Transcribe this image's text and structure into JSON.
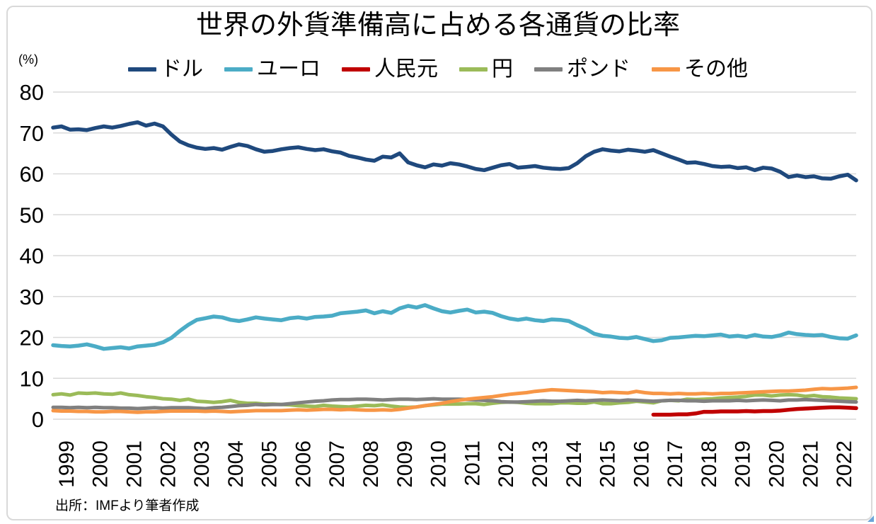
{
  "header": {
    "title": "世界の外貨準備高に占める各通貨の比率",
    "unit_label": "(%)"
  },
  "footer": {
    "source": "出所：IMFより筆者作成"
  },
  "chart_data": {
    "type": "line",
    "title": "世界の外貨準備高に占める各通貨の比率",
    "ylabel": "(%)",
    "xlabel": "",
    "ylim": [
      0,
      80
    ],
    "ytick_step": 10,
    "y_ticks": [
      0,
      10,
      20,
      30,
      40,
      50,
      60,
      70,
      80
    ],
    "grid": true,
    "legend_position": "top",
    "x_labels": [
      "1999",
      "2000",
      "2001",
      "2002",
      "2003",
      "2004",
      "2005",
      "2006",
      "2007",
      "2008",
      "2009",
      "2010",
      "2011",
      "2012",
      "2013",
      "2014",
      "2015",
      "2016",
      "2017",
      "2018",
      "2019",
      "2020",
      "2021",
      "2022"
    ],
    "points_per_year": 4,
    "x_unit": "quarterly points from 1999Q1 to 2022Q4",
    "series": [
      {
        "key": "usd",
        "name": "ドル",
        "color": "#1F497D",
        "line_width": 5.5,
        "values": [
          71.3,
          71.6,
          70.8,
          70.9,
          70.7,
          71.2,
          71.6,
          71.3,
          71.7,
          72.2,
          72.6,
          71.8,
          72.3,
          71.6,
          69.6,
          67.9,
          67.0,
          66.4,
          66.1,
          66.3,
          65.9,
          66.6,
          67.2,
          66.8,
          66.0,
          65.4,
          65.6,
          66.0,
          66.3,
          66.5,
          66.1,
          65.8,
          66.0,
          65.5,
          65.2,
          64.4,
          64.0,
          63.5,
          63.2,
          64.2,
          64.0,
          65.0,
          62.8,
          62.1,
          61.6,
          62.3,
          62.0,
          62.6,
          62.3,
          61.8,
          61.2,
          60.9,
          61.5,
          62.1,
          62.4,
          61.5,
          61.7,
          61.9,
          61.5,
          61.3,
          61.2,
          61.4,
          62.6,
          64.3,
          65.4,
          66.0,
          65.7,
          65.5,
          65.9,
          65.7,
          65.4,
          65.8,
          65.0,
          64.2,
          63.5,
          62.7,
          62.8,
          62.4,
          61.9,
          61.7,
          61.8,
          61.4,
          61.6,
          60.9,
          61.5,
          61.3,
          60.5,
          59.2,
          59.6,
          59.2,
          59.4,
          58.9,
          58.8,
          59.4,
          59.8,
          58.4
        ]
      },
      {
        "key": "eur",
        "name": "ユーロ",
        "color": "#4BACC6",
        "line_width": 5.5,
        "values": [
          18.1,
          17.9,
          17.8,
          18.0,
          18.3,
          17.8,
          17.2,
          17.4,
          17.6,
          17.3,
          17.8,
          18.0,
          18.2,
          18.8,
          19.9,
          21.6,
          23.1,
          24.3,
          24.7,
          25.1,
          24.9,
          24.3,
          24.0,
          24.4,
          24.9,
          24.6,
          24.4,
          24.2,
          24.7,
          24.9,
          24.6,
          25.0,
          25.1,
          25.3,
          25.9,
          26.1,
          26.3,
          26.6,
          25.9,
          26.4,
          26.0,
          27.1,
          27.7,
          27.3,
          27.9,
          27.1,
          26.4,
          26.1,
          26.5,
          26.8,
          26.1,
          26.3,
          26.0,
          25.2,
          24.6,
          24.3,
          24.6,
          24.2,
          24.0,
          24.4,
          24.3,
          24.0,
          23.0,
          22.1,
          20.9,
          20.4,
          20.2,
          19.9,
          19.8,
          20.1,
          19.6,
          19.1,
          19.3,
          19.9,
          20.0,
          20.2,
          20.4,
          20.3,
          20.5,
          20.7,
          20.2,
          20.4,
          20.1,
          20.6,
          20.2,
          20.1,
          20.5,
          21.2,
          20.8,
          20.6,
          20.5,
          20.6,
          20.1,
          19.8,
          19.7,
          20.5
        ]
      },
      {
        "key": "rmb",
        "name": "人民元",
        "color": "#C00000",
        "line_width": 5.5,
        "values": [
          null,
          null,
          null,
          null,
          null,
          null,
          null,
          null,
          null,
          null,
          null,
          null,
          null,
          null,
          null,
          null,
          null,
          null,
          null,
          null,
          null,
          null,
          null,
          null,
          null,
          null,
          null,
          null,
          null,
          null,
          null,
          null,
          null,
          null,
          null,
          null,
          null,
          null,
          null,
          null,
          null,
          null,
          null,
          null,
          null,
          null,
          null,
          null,
          null,
          null,
          null,
          null,
          null,
          null,
          null,
          null,
          null,
          null,
          null,
          null,
          null,
          null,
          null,
          null,
          null,
          null,
          null,
          null,
          null,
          null,
          null,
          1.1,
          1.1,
          1.1,
          1.2,
          1.2,
          1.4,
          1.8,
          1.8,
          1.9,
          1.9,
          1.9,
          2.0,
          1.9,
          2.0,
          2.0,
          2.1,
          2.3,
          2.5,
          2.6,
          2.7,
          2.8,
          2.9,
          2.9,
          2.8,
          2.7
        ]
      },
      {
        "key": "jpy",
        "name": "円",
        "color": "#9BBB59",
        "line_width": 5,
        "values": [
          6.0,
          6.2,
          5.9,
          6.4,
          6.3,
          6.4,
          6.2,
          6.1,
          6.4,
          6.0,
          5.8,
          5.5,
          5.3,
          5.0,
          4.9,
          4.6,
          4.9,
          4.4,
          4.3,
          4.1,
          4.3,
          4.6,
          4.1,
          3.9,
          3.9,
          3.7,
          3.7,
          3.6,
          3.5,
          3.3,
          3.2,
          3.1,
          3.4,
          3.2,
          3.1,
          3.0,
          3.2,
          3.4,
          3.3,
          3.5,
          3.2,
          3.0,
          2.9,
          3.0,
          3.3,
          3.5,
          3.7,
          3.7,
          3.7,
          3.8,
          3.8,
          3.6,
          3.9,
          4.1,
          4.2,
          4.1,
          3.9,
          3.8,
          3.8,
          3.8,
          4.0,
          4.0,
          3.9,
          3.9,
          4.2,
          3.8,
          3.8,
          4.0,
          4.1,
          4.4,
          4.2,
          4.0,
          4.5,
          4.6,
          4.5,
          4.9,
          4.8,
          4.9,
          5.0,
          5.2,
          5.3,
          5.4,
          5.6,
          5.9,
          5.9,
          5.7,
          5.9,
          6.0,
          5.9,
          5.6,
          5.8,
          5.5,
          5.4,
          5.2,
          5.1,
          5.0
        ]
      },
      {
        "key": "gbp",
        "name": "ポンド",
        "color": "#808080",
        "line_width": 5,
        "values": [
          2.9,
          2.9,
          2.8,
          2.9,
          2.8,
          2.9,
          2.8,
          2.8,
          2.7,
          2.7,
          2.6,
          2.7,
          2.8,
          2.7,
          2.8,
          2.8,
          2.8,
          2.7,
          2.6,
          2.8,
          2.9,
          3.1,
          3.3,
          3.4,
          3.6,
          3.5,
          3.6,
          3.6,
          3.8,
          4.0,
          4.2,
          4.4,
          4.5,
          4.7,
          4.8,
          4.8,
          4.9,
          4.9,
          4.8,
          4.7,
          4.8,
          4.9,
          4.9,
          4.8,
          4.9,
          5.0,
          4.9,
          4.9,
          4.9,
          4.8,
          4.7,
          4.6,
          4.5,
          4.3,
          4.2,
          4.2,
          4.3,
          4.4,
          4.5,
          4.4,
          4.4,
          4.5,
          4.6,
          4.5,
          4.6,
          4.7,
          4.6,
          4.5,
          4.7,
          4.6,
          4.5,
          4.4,
          4.5,
          4.6,
          4.6,
          4.5,
          4.5,
          4.4,
          4.5,
          4.5,
          4.5,
          4.6,
          4.5,
          4.6,
          4.7,
          4.6,
          4.5,
          4.7,
          4.7,
          4.8,
          4.7,
          4.6,
          4.5,
          4.4,
          4.3,
          4.2
        ]
      },
      {
        "key": "oth",
        "name": "その他",
        "color": "#F79646",
        "line_width": 5,
        "values": [
          2.1,
          2.0,
          2.0,
          1.9,
          1.9,
          1.8,
          1.8,
          1.9,
          1.9,
          1.8,
          1.7,
          1.8,
          1.8,
          1.9,
          2.0,
          2.0,
          2.0,
          2.0,
          1.9,
          2.0,
          1.9,
          1.8,
          1.9,
          2.0,
          2.1,
          2.1,
          2.1,
          2.1,
          2.2,
          2.3,
          2.2,
          2.3,
          2.4,
          2.4,
          2.3,
          2.4,
          2.3,
          2.2,
          2.2,
          2.3,
          2.2,
          2.4,
          2.7,
          3.0,
          3.3,
          3.6,
          3.9,
          4.3,
          4.6,
          4.9,
          5.1,
          5.3,
          5.5,
          5.8,
          6.1,
          6.3,
          6.5,
          6.8,
          7.0,
          7.2,
          7.1,
          7.0,
          6.9,
          6.8,
          6.7,
          6.5,
          6.6,
          6.5,
          6.4,
          6.8,
          6.5,
          6.3,
          6.3,
          6.2,
          6.3,
          6.2,
          6.2,
          6.3,
          6.2,
          6.3,
          6.3,
          6.4,
          6.5,
          6.6,
          6.7,
          6.8,
          6.9,
          6.9,
          7.0,
          7.1,
          7.3,
          7.5,
          7.4,
          7.5,
          7.6,
          7.8
        ]
      }
    ]
  }
}
